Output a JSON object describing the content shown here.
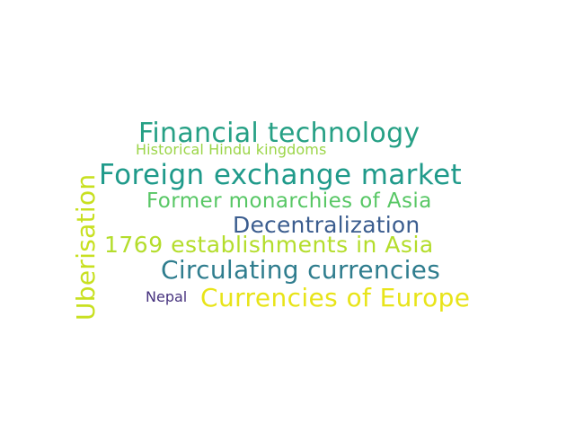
{
  "word_cloud": {
    "words": [
      {
        "text": "Financial technology",
        "color": "#26a085"
      },
      {
        "text": "Historical Hindu kingdoms",
        "color": "#9bd547"
      },
      {
        "text": "Foreign exchange market",
        "color": "#1f9a8a"
      },
      {
        "text": "Former monarchies of Asia",
        "color": "#58c765"
      },
      {
        "text": "Decentralization",
        "color": "#3b5d8f"
      },
      {
        "text": "1769 establishments in Asia",
        "color": "#b4dd2c"
      },
      {
        "text": "Circulating currencies",
        "color": "#2f7d8e"
      },
      {
        "text": "Nepal",
        "color": "#46327e"
      },
      {
        "text": "Currencies of Europe",
        "color": "#e8e419"
      },
      {
        "text": "Uberisation",
        "color": "#c8e020",
        "orientation": "vertical"
      }
    ]
  }
}
